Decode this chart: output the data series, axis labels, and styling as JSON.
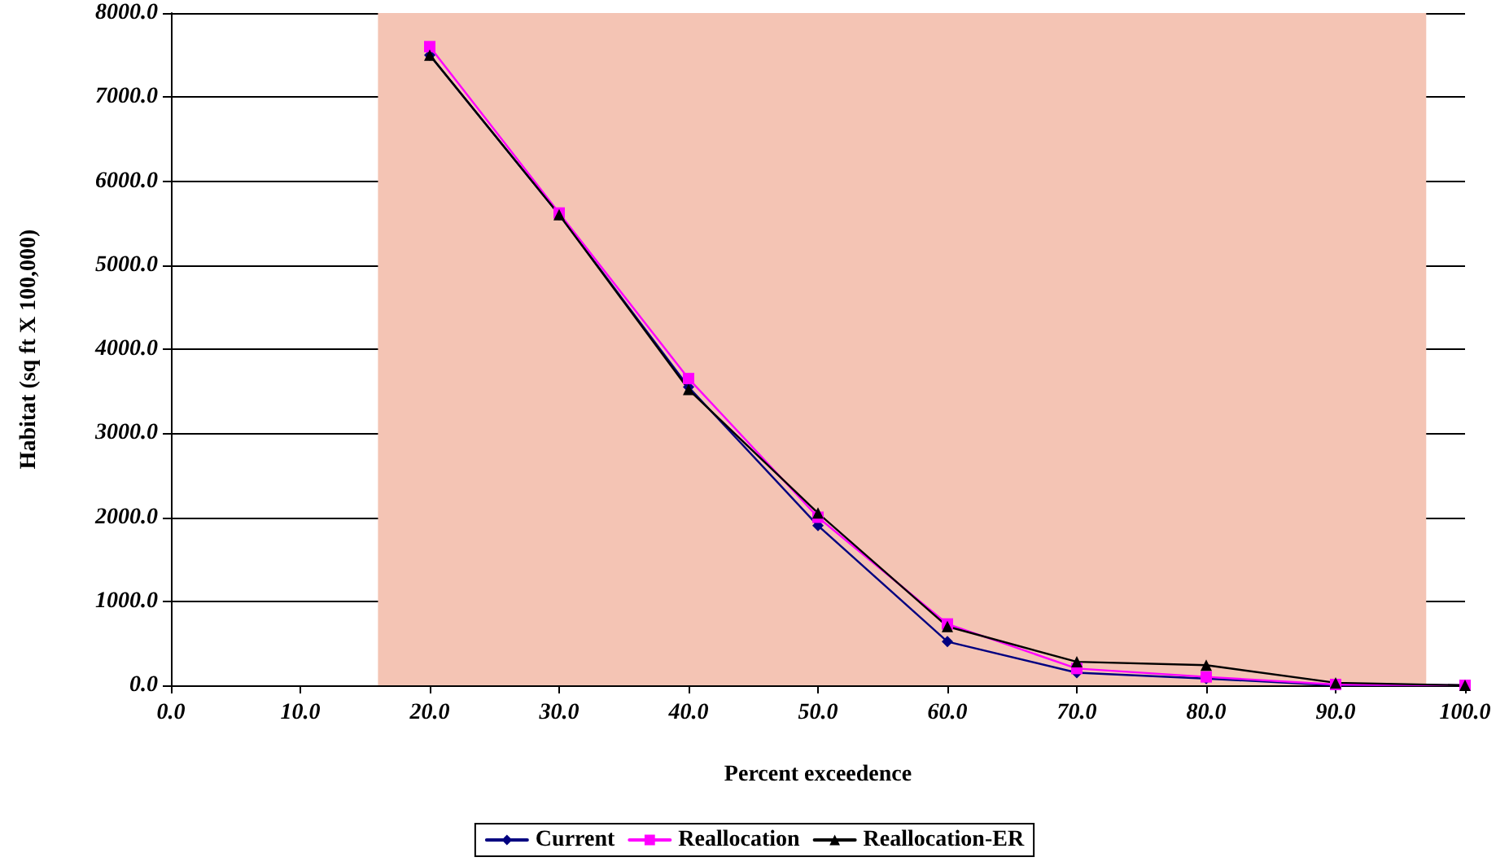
{
  "chart_data": {
    "type": "line",
    "xlabel": "Percent exceedence",
    "ylabel": "Habitat (sq ft X 100,000)",
    "x": [
      20,
      30,
      40,
      50,
      60,
      70,
      80,
      90,
      100
    ],
    "series": [
      {
        "name": "Current",
        "color": "#000080",
        "marker": "diamond",
        "values": [
          7500,
          5600,
          3550,
          1900,
          520,
          150,
          80,
          0,
          0
        ]
      },
      {
        "name": "Reallocation",
        "color": "#ff00ff",
        "marker": "square",
        "values": [
          7600,
          5620,
          3650,
          2000,
          730,
          200,
          100,
          10,
          0
        ]
      },
      {
        "name": "Reallocation-ER",
        "color": "#000000",
        "marker": "triangle",
        "values": [
          7500,
          5600,
          3520,
          2050,
          700,
          280,
          240,
          30,
          0
        ]
      }
    ],
    "xlim": [
      0,
      100
    ],
    "ylim": [
      0,
      8000
    ],
    "xticks": [
      {
        "value": 0,
        "label": "0.0"
      },
      {
        "value": 10,
        "label": "10.0"
      },
      {
        "value": 20,
        "label": "20.0"
      },
      {
        "value": 30,
        "label": "30.0"
      },
      {
        "value": 40,
        "label": "40.0"
      },
      {
        "value": 50,
        "label": "50.0"
      },
      {
        "value": 60,
        "label": "60.0"
      },
      {
        "value": 70,
        "label": "70.0"
      },
      {
        "value": 80,
        "label": "80.0"
      },
      {
        "value": 90,
        "label": "90.0"
      },
      {
        "value": 100,
        "label": "100.0"
      }
    ],
    "yticks": [
      {
        "value": 0,
        "label": "0.0"
      },
      {
        "value": 1000,
        "label": "1000.0"
      },
      {
        "value": 2000,
        "label": "2000.0"
      },
      {
        "value": 3000,
        "label": "3000.0"
      },
      {
        "value": 4000,
        "label": "4000.0"
      },
      {
        "value": 5000,
        "label": "5000.0"
      },
      {
        "value": 6000,
        "label": "6000.0"
      },
      {
        "value": 7000,
        "label": "7000.0"
      },
      {
        "value": 8000,
        "label": "8000.0"
      }
    ],
    "bands": [
      {
        "axis": "x",
        "from": 16,
        "to": 97,
        "color": "#f4c4b4"
      }
    ],
    "grid": "y",
    "legend": "bottom",
    "line_style": "solid"
  }
}
